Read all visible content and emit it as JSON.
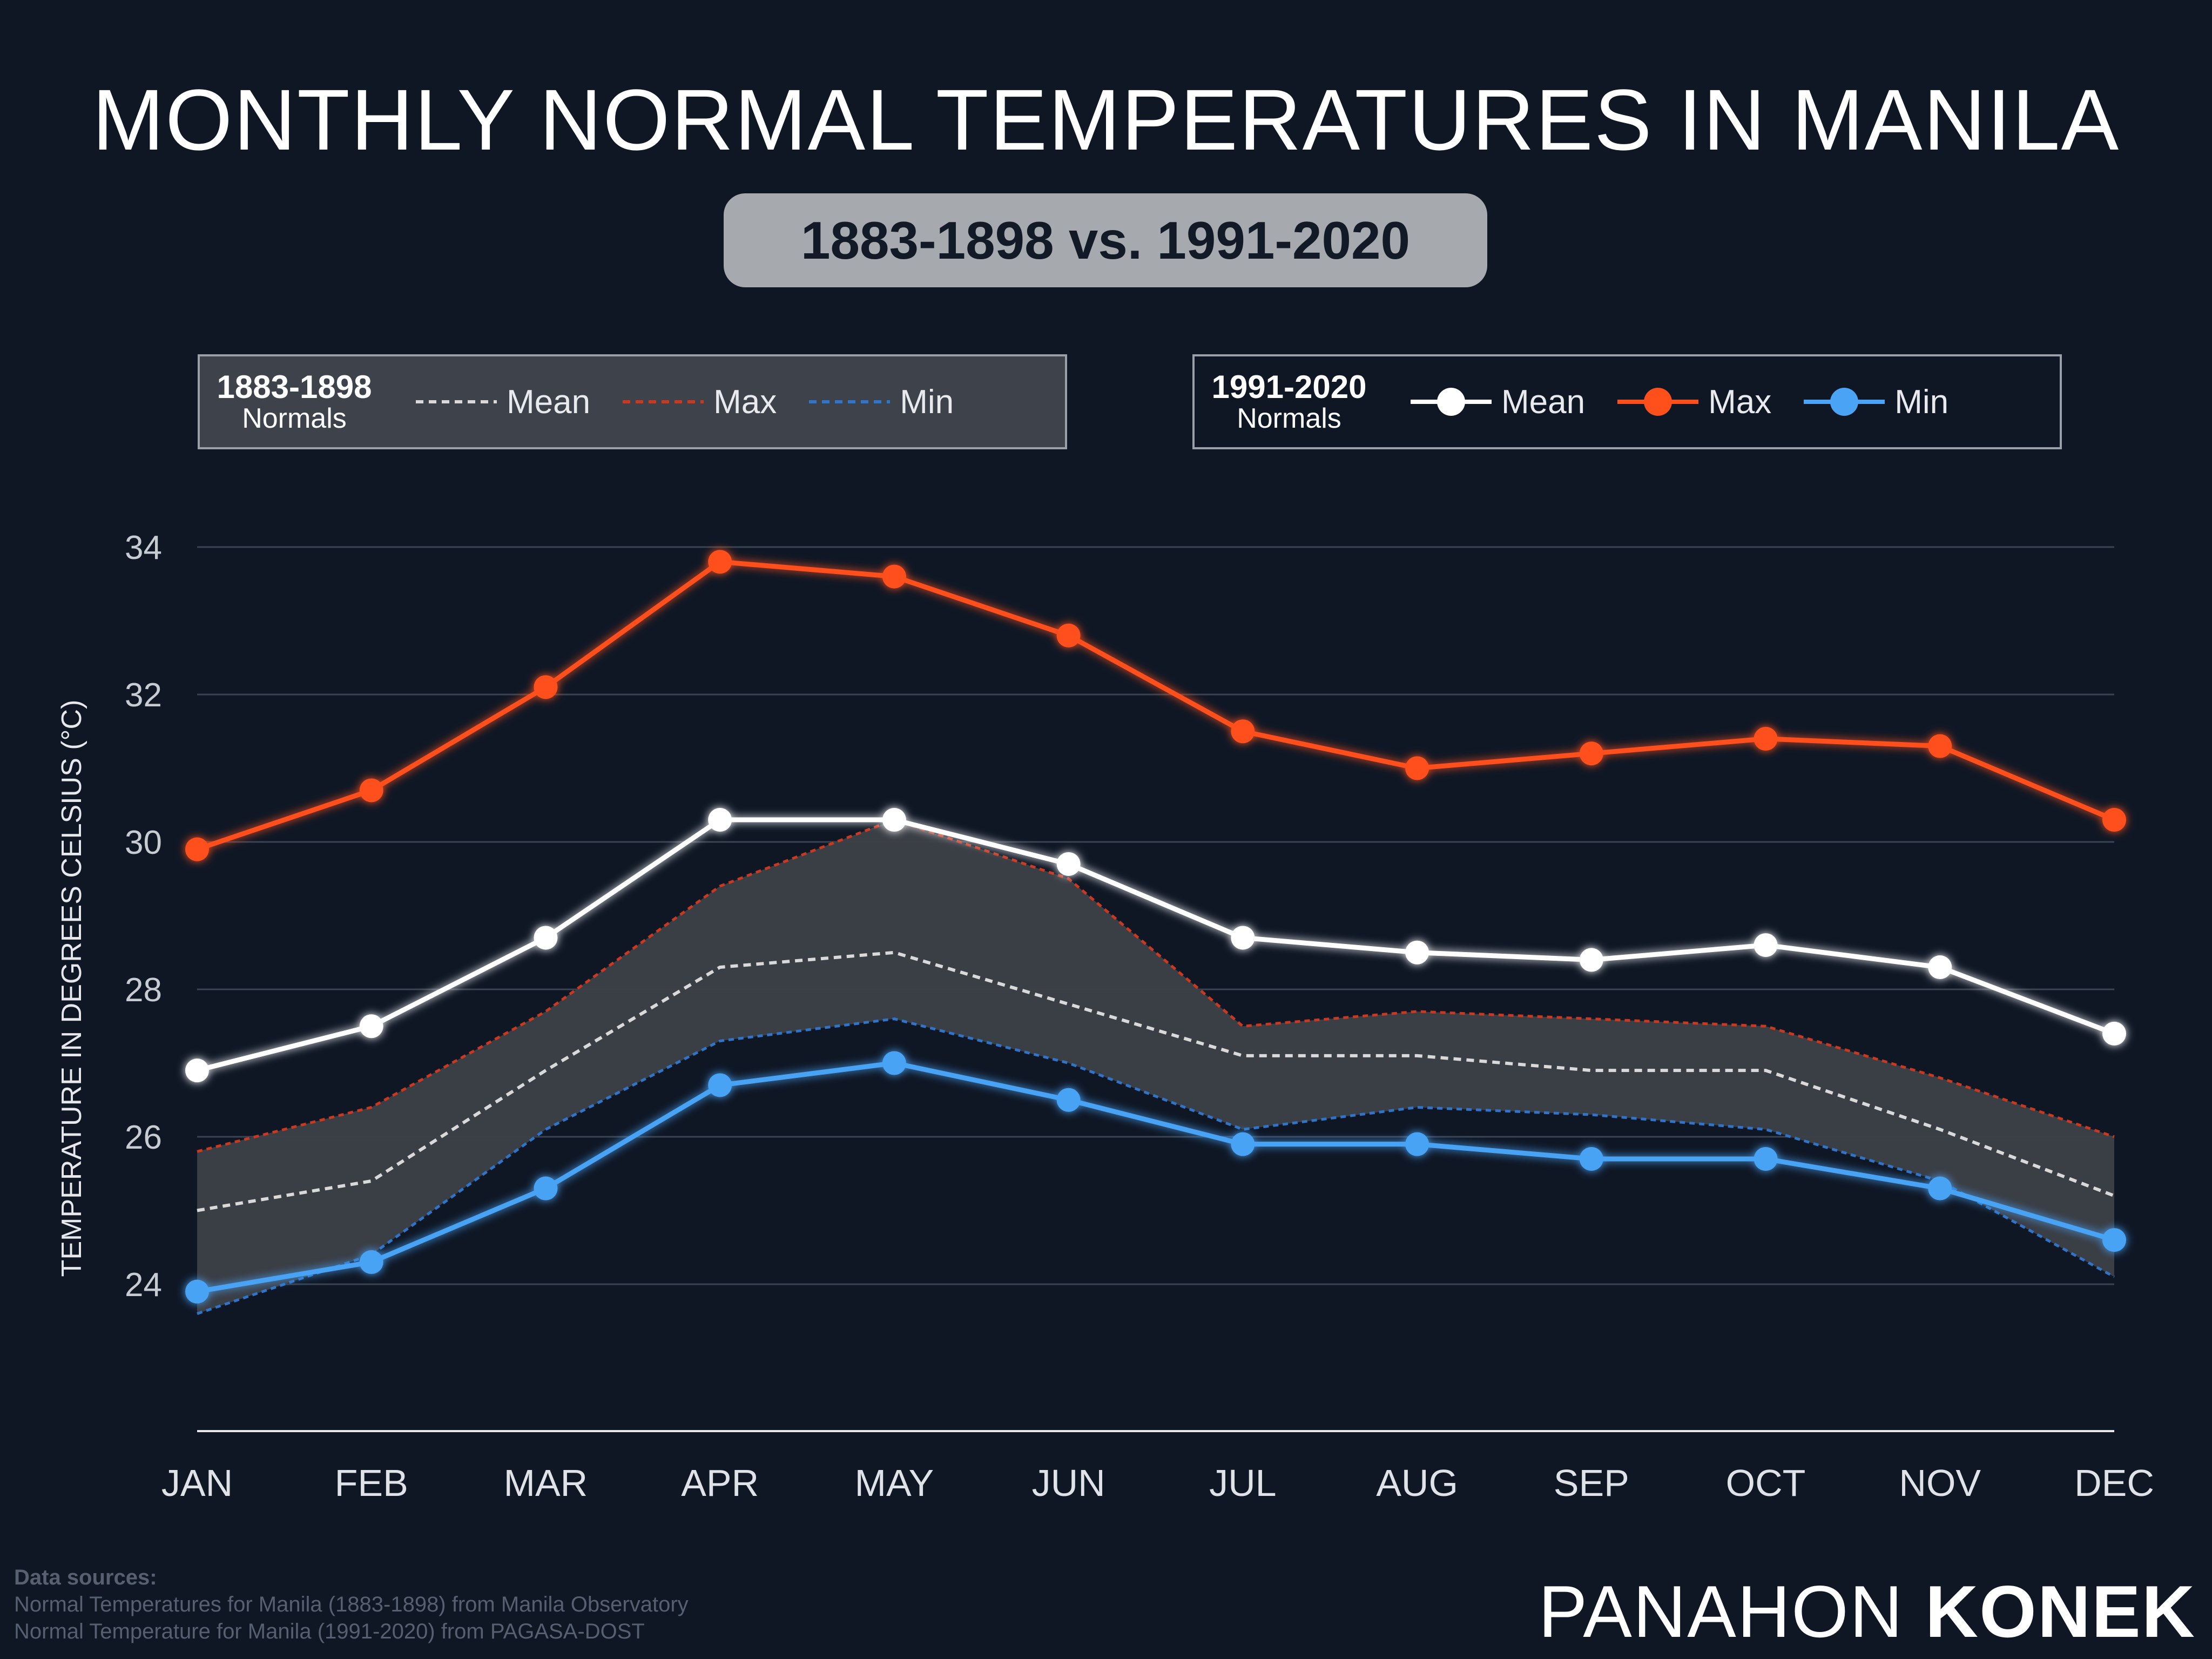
{
  "title": "MONTHLY NORMAL TEMPERATURES IN MANILA",
  "subtitle": "1883-1898 vs. 1991-2020",
  "legend_old": {
    "period": "1883-1898",
    "label": "Normals",
    "mean": "Mean",
    "max": "Max",
    "min": "Min"
  },
  "legend_new": {
    "period": "1991-2020",
    "label": "Normals",
    "mean": "Mean",
    "max": "Max",
    "min": "Min"
  },
  "sources": {
    "heading": "Data sources:",
    "line1": "Normal Temperatures for Manila (1883-1898) from Manila Observatory",
    "line2": "Normal Temperature for Manila (1991-2020) from PAGASA-DOST"
  },
  "brand": {
    "part1": "PANAHON ",
    "part2": "KONEK"
  },
  "colors": {
    "mean": "#ffffff",
    "max": "#ff4f1a",
    "min": "#4aa3f5",
    "old_max": "#c9381f",
    "old_min": "#2f74c9",
    "old_mean": "#d9d9d9",
    "band": "#3d4047"
  },
  "chart_data": {
    "type": "line",
    "title": "MONTHLY NORMAL TEMPERATURES IN MANILA",
    "xlabel": "",
    "ylabel": "TEMPERATURE IN DEGREES CELSIUS (°C)",
    "categories": [
      "JAN",
      "FEB",
      "MAR",
      "APR",
      "MAY",
      "JUN",
      "JUL",
      "AUG",
      "SEP",
      "OCT",
      "NOV",
      "DEC"
    ],
    "ylim": [
      22,
      34.5
    ],
    "yticks": [
      24,
      26,
      28,
      30,
      32,
      34
    ],
    "series": [
      {
        "name": "1991-2020 Max",
        "style": "solid",
        "values": [
          29.9,
          30.7,
          32.1,
          33.8,
          33.6,
          32.8,
          31.5,
          31.0,
          31.2,
          31.4,
          31.3,
          30.3
        ]
      },
      {
        "name": "1991-2020 Mean",
        "style": "solid",
        "values": [
          26.9,
          27.5,
          28.7,
          30.3,
          30.3,
          29.7,
          28.7,
          28.5,
          28.4,
          28.6,
          28.3,
          27.4
        ]
      },
      {
        "name": "1991-2020 Min",
        "style": "solid",
        "values": [
          23.9,
          24.3,
          25.3,
          26.7,
          27.0,
          26.5,
          25.9,
          25.9,
          25.7,
          25.7,
          25.3,
          24.6
        ]
      },
      {
        "name": "1883-1898 Max",
        "style": "dotted",
        "values": [
          25.8,
          26.4,
          27.7,
          29.4,
          30.3,
          29.5,
          27.5,
          27.7,
          27.6,
          27.5,
          26.8,
          26.0
        ]
      },
      {
        "name": "1883-1898 Mean",
        "style": "dotted",
        "values": [
          25.0,
          25.4,
          26.9,
          28.3,
          28.5,
          27.8,
          27.1,
          27.1,
          26.9,
          26.9,
          26.1,
          25.2
        ]
      },
      {
        "name": "1883-1898 Min",
        "style": "dotted",
        "values": [
          23.6,
          24.4,
          26.1,
          27.3,
          27.6,
          27.0,
          26.1,
          26.4,
          26.3,
          26.1,
          25.4,
          24.1
        ]
      }
    ]
  }
}
